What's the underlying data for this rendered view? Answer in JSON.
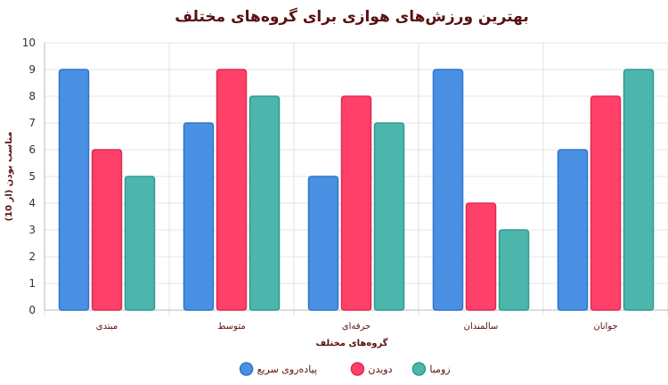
{
  "chart_data": {
    "type": "bar",
    "title": "بهترین ورزش‌های هوازی برای گروه‌های مختلف",
    "xlabel": "گروه‌های مختلف",
    "ylabel": "مناسب بودن (از 10)",
    "ylim": [
      0,
      10
    ],
    "yticks": [
      0,
      1,
      2,
      3,
      4,
      5,
      6,
      7,
      8,
      9,
      10
    ],
    "categories": [
      "مبتدی",
      "متوسط",
      "حرفه‌ای",
      "سالمندان",
      "جوانان"
    ],
    "series": [
      {
        "name": "پیاده‌روی سریع",
        "values": [
          9,
          7,
          5,
          9,
          6
        ],
        "color": "#4a90e2",
        "stroke": "#2f74c9"
      },
      {
        "name": "دویدن",
        "values": [
          6,
          9,
          8,
          4,
          8
        ],
        "color": "#ff4069",
        "stroke": "#e02a52"
      },
      {
        "name": "زومبا",
        "values": [
          5,
          8,
          7,
          3,
          9
        ],
        "color": "#4db6ac",
        "stroke": "#2e9a90"
      }
    ],
    "grid": true,
    "legend_position": "bottom"
  }
}
